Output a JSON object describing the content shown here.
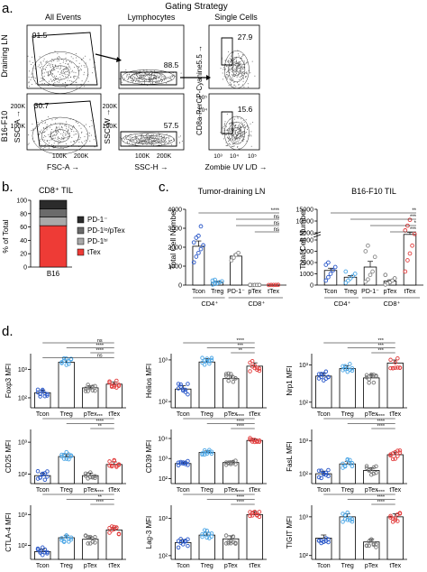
{
  "panel_a": {
    "letter": "a.",
    "gating_title": "Gating Strategy",
    "col_titles": [
      "All Events",
      "Lymphocytes",
      "Single Cells"
    ],
    "row_labels": [
      "Draining LN",
      "B16-F10"
    ],
    "axes": {
      "ssc_a": "SSC-A →",
      "fsc_a": "FSC-A →",
      "ssc_w": "SSC-W →",
      "ssc_h": "SSC-H →",
      "cd8": "CD8a-PerCP-Cyanine5.5 →",
      "zombie": "Zombie UV L/D →"
    },
    "ticks": {
      "lin_y": [
        "200K",
        "100K"
      ],
      "lin_x": [
        "100K",
        "200K"
      ],
      "log_y": [
        "10⁵",
        "10⁴"
      ],
      "zombie_x": [
        "10³",
        "10⁴",
        "10⁵"
      ]
    },
    "gate_values": {
      "ln": [
        "91.5",
        "88.5",
        "27.9"
      ],
      "b16": [
        "30.7",
        "57.5",
        "15.6"
      ]
    }
  },
  "panel_b": {
    "letter": "b.",
    "title": "CD8⁺ TIL",
    "ylabel": "% of Total",
    "yticks": [
      "100",
      "80",
      "60",
      "40",
      "20",
      "0"
    ],
    "xlabel": "B16",
    "legend": [
      "PD-1⁻",
      "PD-1ˡᵒ/pTex",
      "PD-1ʰⁱ",
      "tTex"
    ]
  },
  "panel_c": {
    "letter": "c.",
    "ln_title": "Tumor-draining LN",
    "til_title": "B16-F10 TIL",
    "ylabel": "Total Cell Number",
    "ln_yticks": [
      "4000",
      "3000",
      "2000",
      "1000",
      "0"
    ],
    "til_yticks": [
      "15000",
      "10000",
      "5000",
      "4000",
      "3000",
      "2000",
      "1000",
      "0"
    ],
    "ln_xticks": [
      "Tcon",
      "Treg",
      "PD-1⁻",
      "pTex",
      "tTex"
    ],
    "til_xticks": [
      "Tcon",
      "Treg",
      "PD-1⁻",
      "pTex",
      "tTex"
    ],
    "group_cd4": "CD4⁺",
    "group_cd8": "CD8⁺",
    "ln_sig": [
      "****",
      "ns",
      "ns",
      "ns"
    ],
    "til_sig": [
      "**",
      "***",
      "*",
      "***"
    ]
  },
  "panel_d": {
    "letter": "d.",
    "xticks": [
      "Tcon",
      "Treg",
      "pTex",
      "tTex"
    ]
  },
  "chart_data": [
    {
      "type": "bar",
      "title": "CD8⁺ TIL",
      "ylabel": "% of Total",
      "categories": [
        "B16"
      ],
      "ylim": [
        0,
        100
      ],
      "series": [
        {
          "name": "tTex",
          "values": [
            62
          ],
          "color": "#ee3b36"
        },
        {
          "name": "PD-1ʰⁱ",
          "values": [
            13
          ],
          "color": "#a9a9a9"
        },
        {
          "name": "PD-1ˡᵒ/pTex",
          "values": [
            12
          ],
          "color": "#6b6b6b"
        },
        {
          "name": "PD-1⁻",
          "values": [
            13
          ],
          "color": "#2b2b2b"
        }
      ]
    },
    {
      "type": "bar",
      "title": "Tumor-draining LN",
      "ylabel": "Total Cell Number",
      "categories": [
        "Tcon",
        "Treg",
        "PD-1⁻",
        "pTex",
        "tTex"
      ],
      "ylim": [
        0,
        4000
      ],
      "values": [
        2050,
        150,
        1530,
        8,
        8
      ],
      "errors": [
        280,
        60,
        90,
        3,
        3
      ],
      "points": [
        [
          1200,
          1500,
          1700,
          1900,
          2100,
          2250,
          2500,
          2600,
          3100
        ],
        [
          30,
          60,
          100,
          150,
          200,
          240,
          280
        ],
        [
          1300,
          1450,
          1600,
          1700
        ],
        [
          2,
          4,
          6,
          8,
          10,
          12
        ],
        [
          3,
          5,
          7,
          9,
          11
        ]
      ],
      "colors": [
        "#2856c8",
        "#4ba6e6",
        "#888888",
        "#777777",
        "#e23c3c"
      ]
    },
    {
      "type": "bar",
      "title": "B16-F10 TIL",
      "ylabel": "Total Cell Number",
      "categories": [
        "Tcon",
        "Treg",
        "PD-1⁻",
        "pTex",
        "tTex"
      ],
      "ylim": [
        0,
        15000
      ],
      "axis_break": [
        4000,
        5000
      ],
      "values": [
        1300,
        700,
        1600,
        350,
        4300
      ],
      "errors": [
        200,
        150,
        500,
        120,
        900
      ],
      "points": [
        [
          400,
          700,
          1000,
          1300,
          1600,
          1800,
          2000
        ],
        [
          200,
          400,
          600,
          800,
          1000,
          1200
        ],
        [
          300,
          500,
          900,
          1200,
          2500,
          3000,
          3500
        ],
        [
          50,
          150,
          250,
          400,
          600,
          900
        ],
        [
          1200,
          2200,
          2800,
          3500,
          4500,
          6000,
          8000,
          10500
        ]
      ],
      "colors": [
        "#2856c8",
        "#4ba6e6",
        "#888888",
        "#777777",
        "#e23c3c"
      ]
    },
    {
      "type": "bar",
      "scale": "log",
      "ylabel": "Foxp3 MFI",
      "categories": [
        "Tcon",
        "Treg",
        "pTex",
        "tTex"
      ],
      "yticks": [
        "10³",
        "10²"
      ],
      "ylim_log": [
        1.65,
        3.55
      ],
      "values_log": [
        2.18,
        3.25,
        2.35,
        2.48
      ],
      "sig": [
        "ns",
        "****",
        "****",
        "ns"
      ]
    },
    {
      "type": "bar",
      "scale": "log",
      "ylabel": "Helios MFI",
      "categories": [
        "Tcon",
        "Treg",
        "pTex",
        "tTex"
      ],
      "yticks": [
        "10³",
        "10²"
      ],
      "ylim_log": [
        1.85,
        3.15
      ],
      "values_log": [
        2.3,
        2.95,
        2.55,
        2.85
      ],
      "sig": [
        "****",
        "***",
        "**"
      ]
    },
    {
      "type": "bar",
      "scale": "log",
      "ylabel": "Nrp1 MFI",
      "categories": [
        "Tcon",
        "Treg",
        "pTex",
        "tTex"
      ],
      "yticks": [
        "10³",
        "10²"
      ],
      "ylim_log": [
        1.85,
        3.3
      ],
      "values_log": [
        2.7,
        2.9,
        2.65,
        3.05
      ],
      "sig": [
        "***",
        "***",
        "***"
      ]
    },
    {
      "type": "bar",
      "scale": "log",
      "ylabel": "CD25 MFI",
      "categories": [
        "Tcon",
        "Treg",
        "pTex",
        "tTex"
      ],
      "yticks": [
        "10³",
        "10²"
      ],
      "ylim_log": [
        1.7,
        3.4
      ],
      "values_log": [
        1.95,
        2.55,
        1.95,
        2.3
      ],
      "sig": [
        "***",
        "****",
        "**"
      ]
    },
    {
      "type": "bar",
      "scale": "log",
      "ylabel": "CD39 MFI",
      "categories": [
        "Tcon",
        "Treg",
        "pTex",
        "tTex"
      ],
      "yticks": [
        "10⁴",
        "10³",
        "10²"
      ],
      "ylim_log": [
        1.75,
        4.45
      ],
      "values_log": [
        2.75,
        3.3,
        2.8,
        3.9
      ],
      "sig": [
        "****",
        "****",
        "****"
      ]
    },
    {
      "type": "bar",
      "scale": "log",
      "ylabel": "FasL MFI",
      "categories": [
        "Tcon",
        "Treg",
        "pTex",
        "tTex"
      ],
      "yticks": [
        "10³",
        "10²"
      ],
      "ylim_log": [
        1.7,
        3.35
      ],
      "values_log": [
        2.0,
        2.3,
        2.1,
        2.58
      ],
      "sig": [
        "****",
        "****",
        "****"
      ]
    },
    {
      "type": "bar",
      "scale": "log",
      "ylabel": "CTLA-4 MFI",
      "categories": [
        "Tcon",
        "Treg",
        "pTex",
        "tTex"
      ],
      "yticks": [
        "10³",
        "10²"
      ],
      "ylim_log": [
        1.55,
        3.3
      ],
      "values_log": [
        1.8,
        2.25,
        2.2,
        2.5
      ],
      "sig": [
        "****",
        "**",
        "****"
      ]
    },
    {
      "type": "bar",
      "scale": "log",
      "ylabel": "Lag-3 MFI",
      "categories": [
        "Tcon",
        "Treg",
        "pTex",
        "tTex"
      ],
      "yticks": [
        "10³",
        "10²"
      ],
      "ylim_log": [
        1.9,
        3.35
      ],
      "values_log": [
        2.35,
        2.55,
        2.45,
        3.1
      ],
      "sig": [
        "****",
        "****",
        "****"
      ]
    },
    {
      "type": "bar",
      "scale": "log",
      "ylabel": "TIGIT MFI",
      "categories": [
        "Tcon",
        "Treg",
        "pTex",
        "tTex"
      ],
      "yticks": [
        "10³",
        "10²"
      ],
      "ylim_log": [
        1.9,
        3.3
      ],
      "values_log": [
        2.45,
        3.0,
        2.35,
        3.0
      ],
      "sig": [
        "****",
        "****",
        "****"
      ]
    }
  ]
}
